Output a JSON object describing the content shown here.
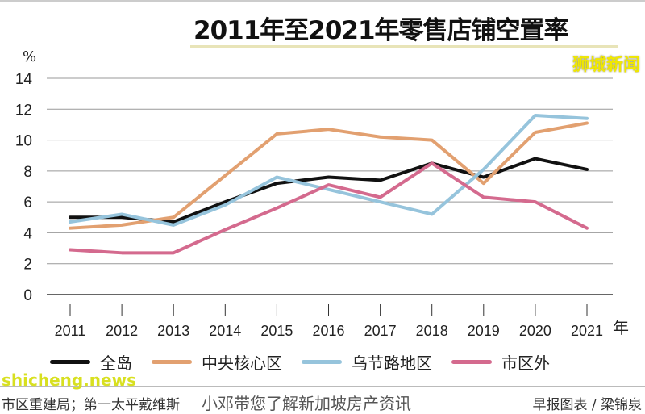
{
  "chart_data": {
    "type": "line",
    "title": "2011年至2021年零售店铺空置率",
    "ylabel": "%",
    "xlabel": "年",
    "ylim": [
      0,
      14
    ],
    "yticks": [
      0,
      2,
      4,
      6,
      8,
      10,
      12,
      14
    ],
    "grid": "horizontal",
    "legend_position": "bottom",
    "x": [
      "2011",
      "2012",
      "2013",
      "2014",
      "2015",
      "2016",
      "2017",
      "2018",
      "2019",
      "2020",
      "2021"
    ],
    "series": [
      {
        "name": "全岛",
        "color": "#111111",
        "values": [
          5.0,
          5.0,
          4.7,
          6.0,
          7.2,
          7.6,
          7.4,
          8.5,
          7.6,
          8.8,
          8.1
        ]
      },
      {
        "name": "中央核心区",
        "color": "#e2a070",
        "values": [
          4.3,
          4.5,
          5.0,
          7.7,
          10.4,
          10.7,
          10.2,
          10.0,
          7.2,
          10.5,
          11.1
        ]
      },
      {
        "name": "乌节路地区",
        "color": "#96c4dc",
        "values": [
          4.7,
          5.2,
          4.5,
          5.8,
          7.6,
          6.8,
          6.0,
          5.2,
          8.1,
          11.6,
          11.4
        ]
      },
      {
        "name": "市区外",
        "color": "#d46a8e",
        "values": [
          2.9,
          2.7,
          2.7,
          4.2,
          5.6,
          7.1,
          6.3,
          8.5,
          6.3,
          6.0,
          4.3
        ]
      }
    ]
  },
  "footer": {
    "source": "市区重建局；第一太平戴维斯",
    "credit": "早报图表 / 梁锦泉"
  },
  "watermarks": {
    "top": "狮城新闻",
    "bottom_left": "shicheng.news",
    "bottom_center": "小邓带您了解新加坡房产资讯"
  }
}
